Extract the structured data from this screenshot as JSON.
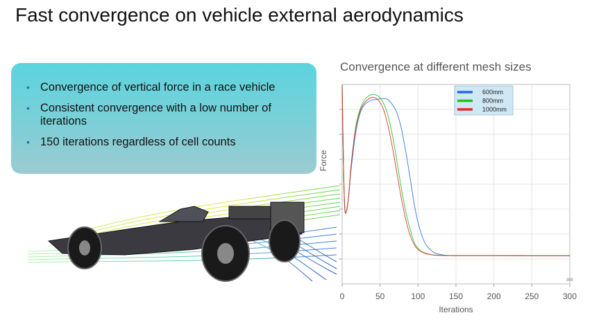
{
  "slide": {
    "title": "Fast convergence on vehicle external aerodynamics",
    "bullets": [
      "Convergence of vertical force in a race vehicle",
      "Consistent convergence with a low number of iterations",
      "150 iterations regardless of cell counts"
    ]
  },
  "chart_data": {
    "type": "line",
    "title": "Convergence at different mesh sizes",
    "xlabel": "Iterations",
    "ylabel": "Force",
    "xlim": [
      0,
      300
    ],
    "ylim": [
      0,
      1
    ],
    "xticks": [
      0,
      50,
      100,
      150,
      200,
      250,
      300
    ],
    "corner_note": "300",
    "grid": true,
    "legend_position": "top-right",
    "series": [
      {
        "name": "600mm",
        "color": "#1e6fe0",
        "x": [
          0,
          2,
          4,
          8,
          12,
          18,
          24,
          30,
          38,
          46,
          54,
          60,
          66,
          72,
          78,
          84,
          90,
          96,
          102,
          110,
          120,
          130,
          140,
          150,
          170,
          200,
          250,
          300
        ],
        "y": [
          1.0,
          0.55,
          0.36,
          0.42,
          0.58,
          0.76,
          0.86,
          0.9,
          0.92,
          0.925,
          0.93,
          0.925,
          0.9,
          0.86,
          0.78,
          0.66,
          0.52,
          0.38,
          0.28,
          0.2,
          0.16,
          0.147,
          0.143,
          0.142,
          0.142,
          0.142,
          0.141,
          0.141
        ]
      },
      {
        "name": "800mm",
        "color": "#1ec21e",
        "x": [
          0,
          2,
          4,
          8,
          12,
          18,
          24,
          30,
          36,
          42,
          48,
          54,
          60,
          66,
          72,
          78,
          84,
          90,
          96,
          104,
          114,
          124,
          134,
          145,
          165,
          200,
          250,
          300
        ],
        "y": [
          1.0,
          0.55,
          0.36,
          0.42,
          0.6,
          0.79,
          0.88,
          0.925,
          0.945,
          0.95,
          0.94,
          0.91,
          0.85,
          0.75,
          0.62,
          0.48,
          0.36,
          0.27,
          0.2,
          0.165,
          0.15,
          0.144,
          0.143,
          0.142,
          0.142,
          0.142,
          0.141,
          0.141
        ]
      },
      {
        "name": "1000mm",
        "color": "#e02828",
        "x": [
          0,
          2,
          4,
          8,
          12,
          18,
          24,
          30,
          36,
          42,
          48,
          54,
          60,
          66,
          72,
          78,
          84,
          90,
          98,
          108,
          118,
          128,
          140,
          160,
          200,
          250,
          300
        ],
        "y": [
          1.0,
          0.55,
          0.36,
          0.42,
          0.6,
          0.78,
          0.87,
          0.91,
          0.93,
          0.935,
          0.92,
          0.88,
          0.8,
          0.69,
          0.56,
          0.43,
          0.32,
          0.24,
          0.18,
          0.155,
          0.146,
          0.143,
          0.142,
          0.142,
          0.142,
          0.141,
          0.141
        ]
      }
    ]
  }
}
